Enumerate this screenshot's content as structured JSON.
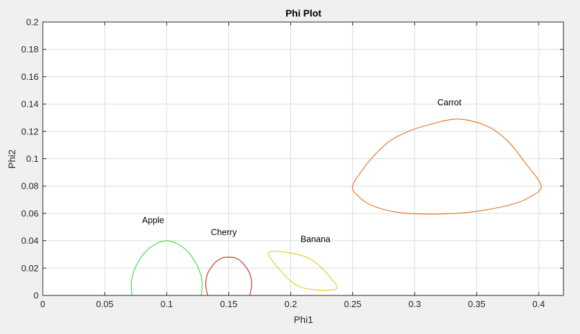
{
  "chart_data": {
    "type": "line",
    "title": "Phi Plot",
    "xlabel": "Phi1",
    "ylabel": "Phi2",
    "xlim": [
      0,
      0.42
    ],
    "ylim": [
      0,
      0.2
    ],
    "grid": true,
    "x_ticks": [
      0,
      0.05,
      0.1,
      0.15,
      0.2,
      0.25,
      0.3,
      0.35,
      0.4
    ],
    "x_tick_labels": [
      "0",
      "0.05",
      "0.1",
      "0.15",
      "0.2",
      "0.25",
      "0.3",
      "0.35",
      "0.4"
    ],
    "y_ticks": [
      0,
      0.02,
      0.04,
      0.06,
      0.08,
      0.1,
      0.12,
      0.14,
      0.16,
      0.18,
      0.2
    ],
    "y_tick_labels": [
      "0",
      "0.02",
      "0.04",
      "0.06",
      "0.08",
      "0.1",
      "0.12",
      "0.14",
      "0.16",
      "0.18",
      "0.2"
    ],
    "series": [
      {
        "label": "Apple",
        "color": "#33dd33",
        "label_position": [
          0.089,
          0.053
        ],
        "points": [
          [
            0.072,
            0.0
          ],
          [
            0.0715,
            0.01
          ],
          [
            0.075,
            0.021
          ],
          [
            0.083,
            0.032
          ],
          [
            0.092,
            0.038
          ],
          [
            0.1,
            0.04
          ],
          [
            0.108,
            0.038
          ],
          [
            0.117,
            0.032
          ],
          [
            0.125,
            0.021
          ],
          [
            0.1285,
            0.01
          ],
          [
            0.128,
            0.0
          ]
        ]
      },
      {
        "label": "Cherry",
        "color": "#cc2222",
        "label_position": [
          0.146,
          0.044
        ],
        "points": [
          [
            0.133,
            0.0
          ],
          [
            0.1315,
            0.008
          ],
          [
            0.133,
            0.016
          ],
          [
            0.139,
            0.024
          ],
          [
            0.145,
            0.0275
          ],
          [
            0.15,
            0.028
          ],
          [
            0.155,
            0.0275
          ],
          [
            0.161,
            0.024
          ],
          [
            0.167,
            0.016
          ],
          [
            0.1685,
            0.008
          ],
          [
            0.167,
            0.0
          ]
        ]
      },
      {
        "label": "Banana",
        "color": "#ddcc22",
        "label_position": [
          0.22,
          0.039
        ],
        "points": [
          [
            0.182,
            0.031
          ],
          [
            0.2,
            0.031
          ],
          [
            0.215,
            0.027
          ],
          [
            0.225,
            0.02
          ],
          [
            0.232,
            0.013
          ],
          [
            0.237,
            0.005
          ],
          [
            0.22,
            0.004
          ],
          [
            0.206,
            0.007
          ],
          [
            0.195,
            0.015
          ],
          [
            0.182,
            0.031
          ]
        ]
      },
      {
        "label": "Carrot",
        "color": "#e07020",
        "label_position": [
          0.328,
          0.139
        ],
        "points": [
          [
            0.25,
            0.08
          ],
          [
            0.258,
            0.092
          ],
          [
            0.268,
            0.103
          ],
          [
            0.28,
            0.113
          ],
          [
            0.295,
            0.12
          ],
          [
            0.312,
            0.125
          ],
          [
            0.335,
            0.129
          ],
          [
            0.358,
            0.124
          ],
          [
            0.375,
            0.113
          ],
          [
            0.39,
            0.096
          ],
          [
            0.402,
            0.08
          ],
          [
            0.393,
            0.072
          ],
          [
            0.38,
            0.067
          ],
          [
            0.36,
            0.063
          ],
          [
            0.34,
            0.0605
          ],
          [
            0.31,
            0.0595
          ],
          [
            0.285,
            0.061
          ],
          [
            0.265,
            0.066
          ],
          [
            0.254,
            0.073
          ],
          [
            0.25,
            0.08
          ]
        ]
      }
    ]
  }
}
